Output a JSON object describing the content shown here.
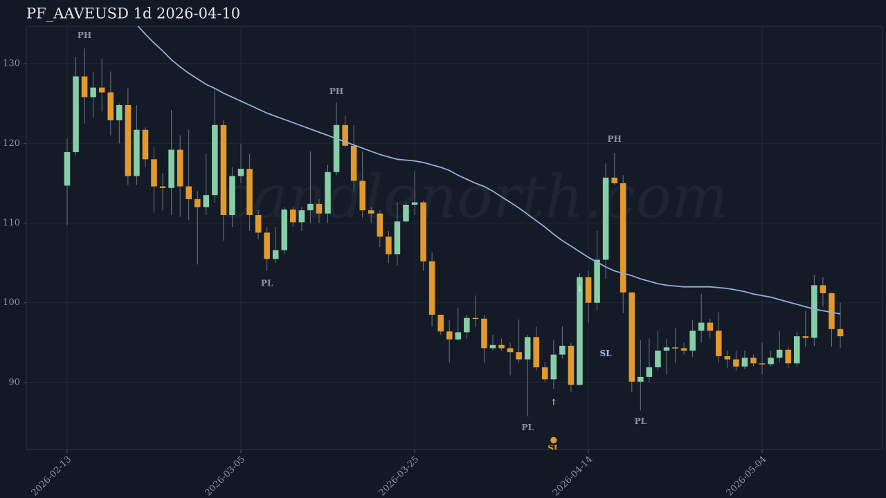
{
  "chart_data": {
    "type": "candlestick",
    "title": "PF_AAVEUSD 1d 2026-04-10",
    "watermark": "candlenorth.com",
    "x": [
      "2026-02-13",
      "2026-02-14",
      "2026-02-15",
      "2026-02-16",
      "2026-02-17",
      "2026-02-18",
      "2026-02-19",
      "2026-02-20",
      "2026-02-21",
      "2026-02-22",
      "2026-02-23",
      "2026-02-24",
      "2026-02-25",
      "2026-02-26",
      "2026-02-27",
      "2026-02-28",
      "2026-03-01",
      "2026-03-02",
      "2026-03-03",
      "2026-03-04",
      "2026-03-05",
      "2026-03-06",
      "2026-03-07",
      "2026-03-08",
      "2026-03-09",
      "2026-03-10",
      "2026-03-11",
      "2026-03-12",
      "2026-03-13",
      "2026-03-14",
      "2026-03-15",
      "2026-03-16",
      "2026-03-17",
      "2026-03-18",
      "2026-03-19",
      "2026-03-20",
      "2026-03-21",
      "2026-03-22",
      "2026-03-23",
      "2026-03-24",
      "2026-03-25",
      "2026-03-26",
      "2026-03-27",
      "2026-03-28",
      "2026-03-29",
      "2026-03-30",
      "2026-03-31",
      "2026-04-01",
      "2026-04-02",
      "2026-04-03",
      "2026-04-04",
      "2026-04-05",
      "2026-04-06",
      "2026-04-07",
      "2026-04-08",
      "2026-04-09",
      "2026-04-10",
      "2026-04-11",
      "2026-04-12",
      "2026-04-13",
      "2026-04-14",
      "2026-04-15",
      "2026-04-16",
      "2026-04-17",
      "2026-04-18",
      "2026-04-19",
      "2026-04-20",
      "2026-04-21",
      "2026-04-22",
      "2026-04-23",
      "2026-04-24",
      "2026-04-25",
      "2026-04-26",
      "2026-04-27",
      "2026-04-28",
      "2026-04-29",
      "2026-04-30",
      "2026-05-01",
      "2026-05-02",
      "2026-05-03",
      "2026-05-04",
      "2026-05-05",
      "2026-05-06",
      "2026-05-07",
      "2026-05-08",
      "2026-05-09",
      "2026-05-10",
      "2026-05-11",
      "2026-05-12",
      "2026-05-13"
    ],
    "open": [
      114.7,
      118.9,
      128.4,
      125.8,
      127.0,
      126.4,
      122.9,
      124.8,
      115.9,
      121.7,
      118.0,
      114.6,
      114.4,
      119.2,
      114.6,
      113.0,
      112.0,
      113.5,
      122.3,
      111.0,
      115.9,
      116.8,
      111.0,
      108.8,
      105.5,
      106.6,
      111.7,
      110.1,
      111.6,
      112.4,
      111.2,
      116.4,
      122.3,
      119.7,
      115.3,
      111.6,
      111.2,
      108.3,
      106.1,
      110.2,
      112.3,
      112.6,
      105.2,
      98.5,
      96.4,
      95.4,
      96.3,
      98.1,
      98.0,
      94.3,
      94.7,
      94.3,
      93.8,
      92.9,
      95.7,
      91.9,
      90.4,
      93.5,
      94.6,
      89.7,
      103.2,
      100.0,
      105.4,
      115.7,
      115.0,
      101.3,
      90.1,
      90.7,
      91.9,
      94.0,
      94.4,
      94.3,
      94.0,
      96.5,
      97.5,
      96.5,
      93.3,
      92.9,
      92.0,
      93.1,
      92.4,
      92.3,
      93.1,
      94.1,
      92.4,
      95.8,
      95.6,
      102.2,
      101.2,
      96.7
    ],
    "high": [
      120.6,
      130.8,
      131.9,
      129.0,
      130.6,
      129.0,
      125.0,
      126.9,
      124.8,
      122.0,
      119.5,
      116.3,
      124.2,
      121.0,
      121.7,
      114.0,
      118.7,
      127.0,
      122.9,
      117.0,
      119.9,
      118.7,
      111.6,
      109.5,
      109.5,
      112.0,
      112.0,
      112.0,
      119.0,
      113.0,
      117.3,
      125.1,
      123.5,
      122.3,
      119.0,
      112.0,
      111.6,
      109.0,
      112.6,
      112.6,
      116.5,
      112.8,
      106.3,
      98.5,
      97.8,
      99.4,
      98.5,
      100.9,
      98.5,
      96.0,
      95.5,
      95.0,
      97.9,
      96.0,
      97.0,
      92.5,
      95.3,
      97.0,
      95.0,
      103.7,
      104.0,
      109.0,
      117.5,
      118.8,
      116.0,
      101.3,
      95.3,
      95.5,
      96.5,
      95.5,
      96.8,
      95.0,
      97.8,
      101.1,
      98.0,
      98.8,
      94.0,
      94.0,
      94.0,
      93.5,
      95.0,
      94.0,
      96.5,
      94.5,
      96.3,
      99.0,
      103.5,
      103.2,
      101.3,
      100.0
    ],
    "low": [
      109.8,
      118.5,
      122.5,
      123.2,
      124.0,
      121.0,
      120.0,
      114.8,
      114.8,
      117.0,
      111.3,
      111.6,
      111.0,
      110.8,
      110.4,
      104.8,
      111.0,
      112.6,
      107.8,
      109.5,
      115.0,
      109.0,
      108.0,
      104.0,
      105.0,
      106.2,
      109.5,
      109.0,
      110.0,
      110.0,
      110.0,
      116.0,
      119.5,
      114.0,
      110.7,
      110.0,
      107.0,
      105.0,
      104.7,
      110.0,
      111.0,
      104.0,
      97.0,
      96.0,
      92.5,
      95.3,
      95.5,
      97.0,
      92.5,
      94.0,
      94.0,
      90.9,
      92.5,
      85.8,
      91.5,
      90.0,
      89.2,
      93.0,
      88.8,
      89.6,
      97.5,
      99.0,
      103.0,
      114.8,
      98.7,
      88.8,
      86.5,
      90.0,
      91.5,
      91.0,
      92.5,
      93.5,
      93.2,
      95.0,
      95.5,
      92.5,
      91.8,
      91.5,
      91.7,
      92.0,
      91.0,
      92.0,
      92.5,
      91.8,
      92.0,
      94.5,
      94.6,
      99.5,
      94.5,
      94.3
    ],
    "close": [
      118.9,
      128.4,
      125.8,
      127.0,
      126.4,
      122.9,
      124.8,
      115.9,
      121.7,
      118.0,
      114.6,
      114.4,
      119.2,
      114.6,
      113.0,
      112.0,
      113.5,
      122.3,
      111.0,
      115.9,
      116.8,
      111.0,
      108.8,
      105.5,
      106.6,
      111.7,
      110.1,
      111.6,
      112.4,
      111.2,
      116.4,
      122.3,
      119.7,
      115.3,
      111.6,
      111.2,
      108.3,
      106.1,
      110.2,
      112.3,
      112.6,
      105.2,
      98.5,
      96.4,
      95.4,
      96.3,
      98.1,
      98.0,
      94.3,
      94.7,
      94.3,
      93.8,
      92.9,
      95.7,
      91.9,
      90.4,
      93.5,
      94.6,
      89.7,
      103.2,
      100.0,
      105.4,
      115.7,
      115.0,
      101.3,
      90.1,
      90.7,
      91.9,
      94.0,
      94.4,
      94.3,
      94.0,
      96.5,
      97.5,
      96.5,
      93.3,
      92.9,
      92.0,
      93.1,
      92.4,
      92.3,
      93.1,
      94.1,
      92.4,
      95.8,
      95.6,
      102.2,
      101.2,
      96.7,
      95.8
    ],
    "up_color": "#86cfa6",
    "down_color": "#e39a2d",
    "ma": {
      "color": "#8fb0dc",
      "values": [
        null,
        null,
        null,
        null,
        null,
        null,
        null,
        null,
        134.9,
        133.7,
        132.6,
        131.6,
        130.5,
        129.6,
        128.8,
        128.1,
        127.4,
        126.9,
        126.3,
        125.8,
        125.3,
        124.8,
        124.3,
        123.8,
        123.4,
        123.0,
        122.6,
        122.2,
        121.8,
        121.4,
        121.0,
        120.6,
        120.2,
        119.8,
        119.4,
        119.0,
        118.6,
        118.3,
        118.0,
        117.9,
        117.8,
        117.6,
        117.3,
        117.0,
        116.6,
        116.0,
        115.5,
        115.0,
        114.6,
        114.0,
        113.3,
        112.6,
        111.9,
        111.1,
        110.3,
        109.5,
        108.6,
        107.8,
        107.1,
        106.4,
        105.7,
        105.1,
        104.5,
        104.0,
        103.7,
        103.4,
        103.0,
        102.7,
        102.4,
        102.2,
        102.1,
        102.0,
        102.0,
        102.0,
        102.0,
        101.9,
        101.8,
        101.6,
        101.4,
        101.1,
        100.9,
        100.7,
        100.4,
        100.1,
        99.8,
        99.5,
        99.2,
        99.0,
        98.8,
        98.6
      ]
    },
    "ylim": [
      81.58,
      134.69
    ],
    "yticks": [
      90,
      100,
      110,
      120,
      130
    ],
    "xticks": [
      "2026-02-13",
      "2026-03-05",
      "2026-03-25",
      "2026-04-14",
      "2026-05-04"
    ],
    "grid": true,
    "annotations": [
      {
        "text": "PH",
        "x": "2026-02-15",
        "y": 133.5,
        "color": "#8a95a5"
      },
      {
        "text": "PH",
        "x": "2026-03-16",
        "y": 126.5,
        "color": "#8a95a5"
      },
      {
        "text": "PL",
        "x": "2026-03-08",
        "y": 102.4,
        "color": "#8a95a5"
      },
      {
        "text": "PH",
        "x": "2026-04-17",
        "y": 120.5,
        "color": "#8a95a5"
      },
      {
        "text": "PL",
        "x": "2026-04-07",
        "y": 84.3,
        "color": "#8a95a5"
      },
      {
        "text": "PL",
        "x": "2026-04-20",
        "y": 85.1,
        "color": "#8a95a5"
      },
      {
        "text": "SL",
        "x": "2026-04-16",
        "y": 93.6,
        "color": "#9ec0f0"
      },
      {
        "text": "●",
        "x": "2026-04-10",
        "y": 82.8,
        "color": "#e39a2d"
      },
      {
        "text": "SL",
        "x": "2026-04-10",
        "y": 81.7,
        "color": "#e39a2d"
      },
      {
        "text": "↑",
        "x": "2026-04-10",
        "y": 87.5,
        "color": "#86cfa6"
      },
      {
        "text": "↓",
        "x": "2026-04-13",
        "y": 101.7,
        "color": "#c6e8d4"
      },
      {
        "text": "×",
        "x": "2026-04-19",
        "y": 93.6,
        "color": "#e39a2d"
      }
    ]
  }
}
